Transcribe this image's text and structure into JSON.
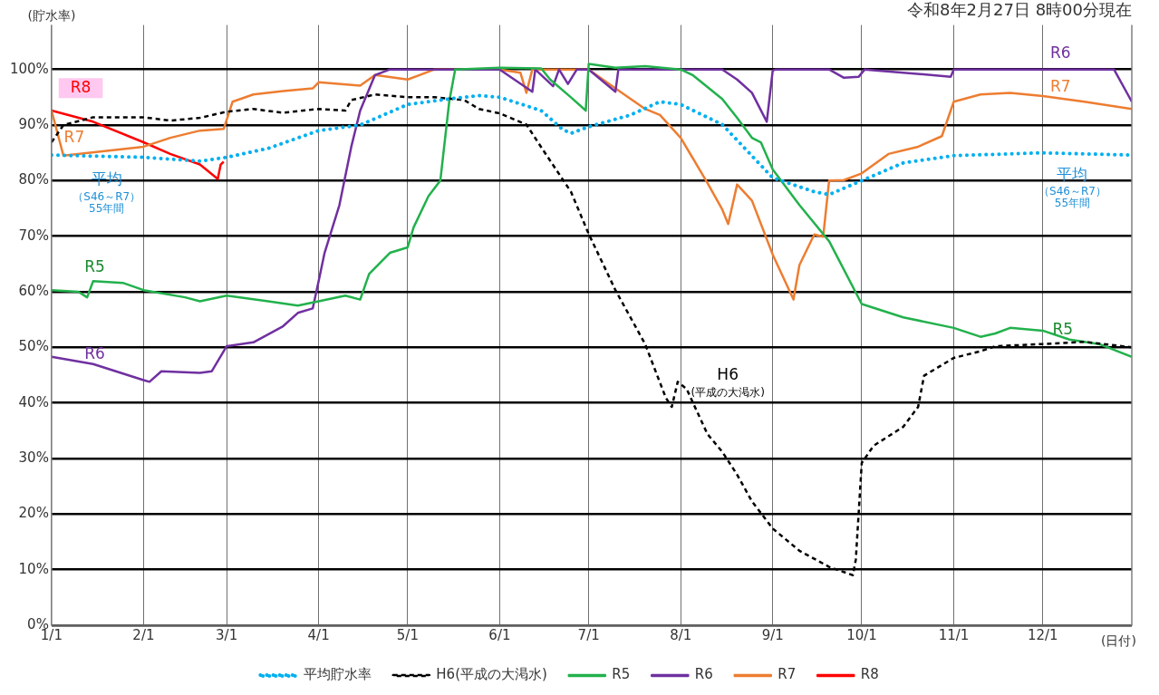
{
  "chart_data": {
    "type": "line",
    "title": "令和8年2月27日 8時00分現在",
    "xlabel": "(日付)",
    "ylabel": "(貯水率)",
    "xlim": [
      "--01-01",
      "--12-31"
    ],
    "xticks": [
      {
        "value": "--01-01",
        "label": "1/1"
      },
      {
        "value": "--02-01",
        "label": "2/1"
      },
      {
        "value": "--03-01",
        "label": "3/1"
      },
      {
        "value": "--04-01",
        "label": "4/1"
      },
      {
        "value": "--05-01",
        "label": "5/1"
      },
      {
        "value": "--06-01",
        "label": "6/1"
      },
      {
        "value": "--07-01",
        "label": "7/1"
      },
      {
        "value": "--08-01",
        "label": "8/1"
      },
      {
        "value": "--09-01",
        "label": "9/1"
      },
      {
        "value": "--10-01",
        "label": "10/1"
      },
      {
        "value": "--11-01",
        "label": "11/1"
      },
      {
        "value": "--12-01",
        "label": "12/1"
      }
    ],
    "ylim": [
      0,
      108
    ],
    "yticks": [
      {
        "value": 0,
        "label": "0%"
      },
      {
        "value": 10,
        "label": "10%"
      },
      {
        "value": 20,
        "label": "20%"
      },
      {
        "value": 30,
        "label": "30%"
      },
      {
        "value": 40,
        "label": "40%"
      },
      {
        "value": 50,
        "label": "50%"
      },
      {
        "value": 60,
        "label": "60%"
      },
      {
        "value": 70,
        "label": "70%"
      },
      {
        "value": 80,
        "label": "80%"
      },
      {
        "value": 90,
        "label": "90%"
      },
      {
        "value": 100,
        "label": "100%"
      }
    ],
    "grid": true,
    "legend": "bottom",
    "marker": "none",
    "series": [
      {
        "name": "平均貯水率",
        "color": "#00b0f0",
        "line_style": "dotted",
        "x": [
          "--01-01",
          "--02-01",
          "--02-20",
          "--03-01",
          "--03-15",
          "--04-01",
          "--04-15",
          "--05-01",
          "--05-15",
          "--05-25",
          "--06-01",
          "--06-15",
          "--06-22",
          "--06-25",
          "--07-01",
          "--07-15",
          "--07-25",
          "--08-01",
          "--08-15",
          "--09-01",
          "--09-15",
          "--09-20",
          "--10-01",
          "--10-15",
          "--11-01",
          "--12-01",
          "--12-31"
        ],
        "values": [
          84.6,
          84.2,
          83.5,
          84.2,
          85.8,
          89,
          90,
          93.7,
          94.7,
          95.3,
          95,
          92.6,
          89.3,
          88.5,
          89.7,
          91.8,
          94.2,
          93.7,
          90.1,
          80.5,
          78,
          77.5,
          80,
          83.2,
          84.5,
          85,
          84.6
        ]
      },
      {
        "name": "H6(平成の大渇水)",
        "color": "#000000",
        "line_style": "dashed",
        "x": [
          "--01-01",
          "--01-05",
          "--01-15",
          "--02-01",
          "--02-10",
          "--02-20",
          "--03-01",
          "--03-10",
          "--03-20",
          "--04-01",
          "--04-10",
          "--04-12",
          "--04-20",
          "--05-01",
          "--05-10",
          "--05-20",
          "--05-25",
          "--06-01",
          "--06-10",
          "--06-15",
          "--06-20",
          "--06-25",
          "--07-01",
          "--07-10",
          "--07-20",
          "--07-27",
          "--07-29",
          "--07-31",
          "--08-03",
          "--08-10",
          "--08-15",
          "--08-20",
          "--08-25",
          "--09-01",
          "--09-10",
          "--09-20",
          "--09-28",
          "--09-29",
          "--10-01",
          "--10-05",
          "--10-15",
          "--10-20",
          "--10-22",
          "--11-01",
          "--11-10",
          "--11-15",
          "--12-01",
          "--12-15",
          "--12-31"
        ],
        "values": [
          86.9,
          90,
          91.4,
          91.4,
          90.8,
          91.3,
          92.4,
          92.9,
          92.2,
          92.9,
          92.6,
          94.5,
          95.5,
          95,
          95,
          94.5,
          92.9,
          92.1,
          90.1,
          86,
          82,
          78,
          70.4,
          60.3,
          50.6,
          40.9,
          39.3,
          43.8,
          42.5,
          34.4,
          31.2,
          27.1,
          22.3,
          17.4,
          13.4,
          10.5,
          9,
          11.8,
          29.2,
          32.3,
          35.7,
          39.3,
          44.9,
          48.1,
          49.3,
          50.2,
          50.6,
          51,
          50
        ]
      },
      {
        "name": "R5",
        "color": "#22b14c",
        "line_style": "solid",
        "x": [
          "--01-01",
          "--01-10",
          "--01-13",
          "--01-15",
          "--01-25",
          "--02-01",
          "--02-15",
          "--02-20",
          "--03-01",
          "--03-15",
          "--03-25",
          "--04-01",
          "--04-10",
          "--04-15",
          "--04-18",
          "--04-25",
          "--05-01",
          "--05-03",
          "--05-08",
          "--05-12",
          "--05-15",
          "--05-17",
          "--06-01",
          "--06-15",
          "--06-18",
          "--06-25",
          "--06-30",
          "--07-01",
          "--07-10",
          "--07-20",
          "--08-01",
          "--08-05",
          "--08-15",
          "--08-20",
          "--08-25",
          "--08-28",
          "--09-01",
          "--09-10",
          "--09-20",
          "--10-01",
          "--10-15",
          "--11-01",
          "--11-10",
          "--11-15",
          "--11-20",
          "--12-01",
          "--12-10",
          "--12-20",
          "--12-31"
        ],
        "values": [
          60.3,
          60,
          59,
          61.9,
          61.6,
          60.3,
          59,
          58.3,
          59.3,
          58.3,
          57.5,
          58.3,
          59.3,
          58.6,
          63.2,
          67,
          68,
          71.6,
          77.2,
          80,
          94.2,
          100,
          100.3,
          100.2,
          98.2,
          95,
          92.6,
          101,
          100.3,
          100.6,
          100,
          99,
          94.7,
          91.3,
          87.7,
          86.9,
          82,
          75.6,
          69.1,
          57.8,
          55.4,
          53.5,
          51.9,
          52.5,
          53.5,
          53,
          51.4,
          50.6,
          48.3
        ]
      },
      {
        "name": "R6",
        "color": "#7030a0",
        "line_style": "solid",
        "x": [
          "--01-01",
          "--01-15",
          "--02-01",
          "--02-03",
          "--02-07",
          "--02-20",
          "--02-24",
          "--03-01",
          "--03-10",
          "--03-20",
          "--03-25",
          "--03-30",
          "--04-01",
          "--04-03",
          "--04-08",
          "--04-12",
          "--04-15",
          "--04-20",
          "--04-25",
          "--06-01",
          "--06-12",
          "--06-13",
          "--06-19",
          "--06-21",
          "--06-24",
          "--06-27",
          "--07-01",
          "--07-10",
          "--07-11",
          "--08-15",
          "--08-20",
          "--08-25",
          "--08-30",
          "--09-01",
          "--09-02",
          "--09-20",
          "--09-25",
          "--09-30",
          "--10-02",
          "--10-31",
          "--11-01",
          "--12-25",
          "--12-31"
        ],
        "values": [
          48.3,
          47,
          44.1,
          43.8,
          45.7,
          45.4,
          45.7,
          50.2,
          50.9,
          53.8,
          56.2,
          57,
          61.9,
          67,
          75.6,
          86.1,
          92.6,
          99,
          100,
          100,
          96,
          100,
          97,
          100,
          97.4,
          100,
          100,
          96,
          100,
          100,
          98.2,
          95.8,
          90.6,
          99.8,
          100,
          100,
          98.5,
          98.7,
          100,
          98.7,
          100,
          100,
          94.2
        ]
      },
      {
        "name": "R7",
        "color": "#ed7d31",
        "line_style": "solid",
        "x": [
          "--01-01",
          "--01-05",
          "--02-01",
          "--02-10",
          "--02-20",
          "--02-28",
          "--03-03",
          "--03-10",
          "--03-20",
          "--03-30",
          "--04-01",
          "--04-15",
          "--04-20",
          "--05-01",
          "--05-05",
          "--05-10",
          "--06-01",
          "--06-08",
          "--06-10",
          "--06-12",
          "--07-01",
          "--07-10",
          "--07-20",
          "--07-25",
          "--08-01",
          "--08-10",
          "--08-15",
          "--08-17",
          "--08-20",
          "--08-25",
          "--09-01",
          "--09-08",
          "--09-10",
          "--09-15",
          "--09-18",
          "--09-20",
          "--09-25",
          "--10-01",
          "--10-10",
          "--10-20",
          "--10-28",
          "--11-01",
          "--11-10",
          "--11-20",
          "--12-01",
          "--12-15",
          "--12-31"
        ],
        "values": [
          92.6,
          84.5,
          86.1,
          87.7,
          89,
          89.3,
          94.2,
          95.5,
          96.1,
          96.6,
          97.7,
          97.1,
          99,
          98.2,
          99,
          100,
          100,
          99.4,
          95.8,
          100,
          100,
          96.6,
          92.9,
          91.8,
          87.7,
          79.6,
          74.8,
          72.2,
          79.3,
          76.4,
          66.7,
          58.6,
          64.8,
          70.3,
          69.9,
          80,
          80.1,
          81.3,
          84.8,
          86.1,
          88,
          94.2,
          95.5,
          95.8,
          95.2,
          94.2,
          92.9
        ]
      },
      {
        "name": "R8",
        "color": "#ff0000",
        "line_style": "solid",
        "x": [
          "--01-01",
          "--01-15",
          "--02-01",
          "--02-10",
          "--02-20",
          "--02-26",
          "--02-27",
          "--02-28"
        ],
        "values": [
          92.6,
          90.6,
          86.9,
          84.8,
          82.9,
          80.3,
          82.9,
          83.4
        ]
      }
    ],
    "annotations": [
      "R8",
      "R7",
      "平均（S46～R7）55年間",
      "R5",
      "R6",
      "H6(平成の大渇水)",
      "R6",
      "R7",
      "平均（S46～R7）55年間",
      "R5"
    ]
  }
}
